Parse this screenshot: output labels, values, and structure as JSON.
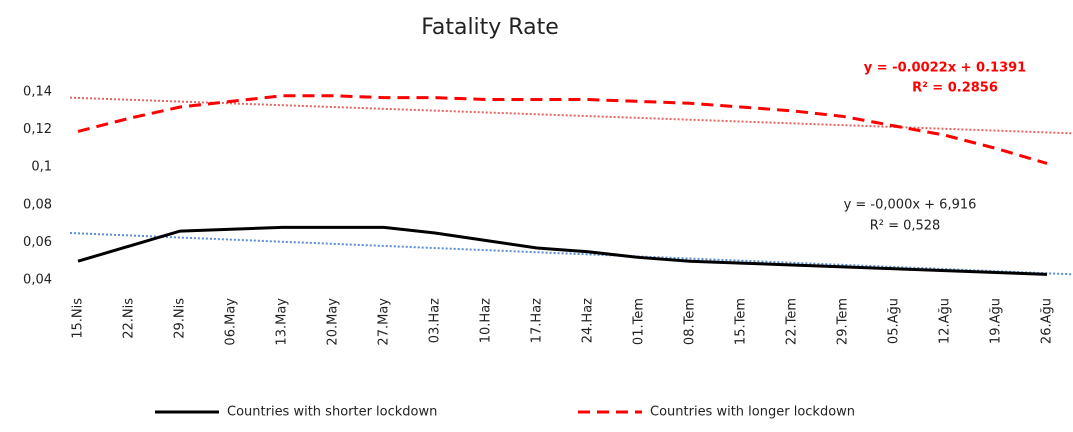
{
  "chart_data": {
    "type": "line",
    "title": "Fatality Rate",
    "categories": [
      "15.Nis",
      "22.Nis",
      "29.Nis",
      "06.May",
      "13.May",
      "20.May",
      "27.May",
      "03.Haz",
      "10.Haz",
      "17.Haz",
      "24.Haz",
      "01.Tem",
      "08.Tem",
      "15.Tem",
      "22.Tem",
      "29.Tem",
      "05.Ağu",
      "12.Ağu",
      "19.Ağu",
      "26.Ağu"
    ],
    "series": [
      {
        "name": "Countries with shorter lockdown",
        "color": "#000000",
        "dash": "solid",
        "values": [
          0.05,
          0.058,
          0.066,
          0.067,
          0.068,
          0.068,
          0.068,
          0.065,
          0.061,
          0.057,
          0.055,
          0.052,
          0.05,
          0.049,
          0.048,
          0.047,
          0.046,
          0.045,
          0.044,
          0.043
        ]
      },
      {
        "name": "Countries with longer  lockdown",
        "color": "#ff0000",
        "dash": "dashed",
        "values": [
          0.119,
          0.126,
          0.132,
          0.135,
          0.138,
          0.138,
          0.137,
          0.137,
          0.136,
          0.136,
          0.136,
          0.135,
          0.134,
          0.132,
          0.13,
          0.127,
          0.122,
          0.117,
          0.11,
          0.102
        ]
      }
    ],
    "trendlines": [
      {
        "color": "#5b8fd0",
        "values": [
          0.065,
          0.043
        ]
      },
      {
        "color": "#e06666",
        "values": [
          0.137,
          0.118
        ]
      }
    ],
    "annotations": [
      {
        "text": "y = -0.0022x + 0.1391",
        "color": "#ff0000"
      },
      {
        "text": "R² = 0.2856",
        "color": "#ff0000"
      },
      {
        "text": "y = -0,000x + 6,916",
        "color": "#222222"
      },
      {
        "text": "R² = 0,528",
        "color": "#222222"
      }
    ],
    "ylim": [
      0.04,
      0.14
    ],
    "yticks": [
      {
        "value": 0.04,
        "label": "0,04"
      },
      {
        "value": 0.06,
        "label": "0,06"
      },
      {
        "value": 0.08,
        "label": "0,08"
      },
      {
        "value": 0.1,
        "label": "0,1"
      },
      {
        "value": 0.12,
        "label": "0,12"
      },
      {
        "value": 0.14,
        "label": "0,14"
      }
    ],
    "grid": false,
    "legend": "bottom"
  }
}
